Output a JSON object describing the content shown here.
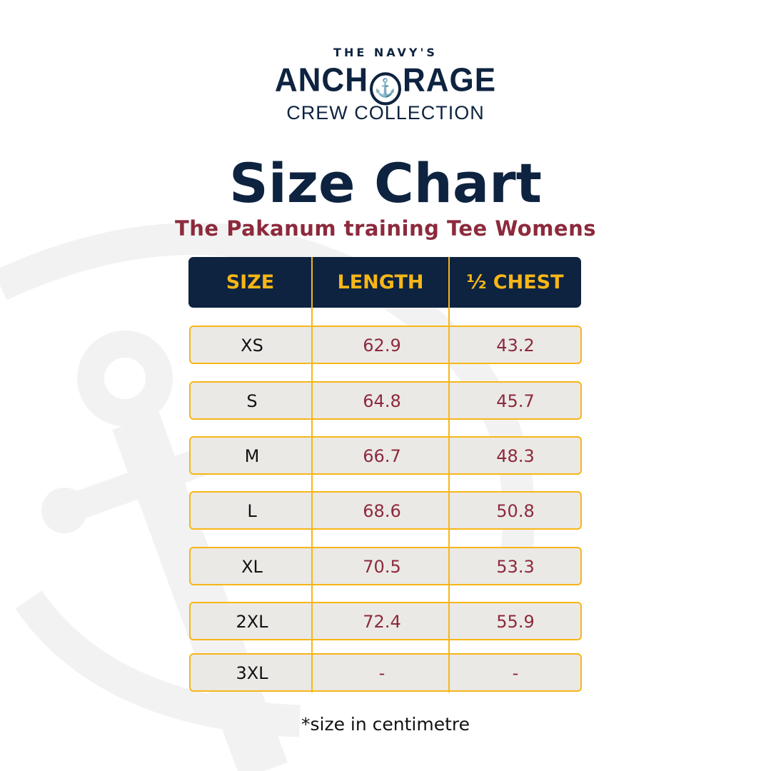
{
  "logo": {
    "top": "THE NAVY'S",
    "main_left": "ANCH",
    "main_right": "RAGE",
    "sub": "CREW COLLECTION",
    "icon": "anchor-icon"
  },
  "title": "Size Chart",
  "subtitle": "The Pakanum training Tee Womens",
  "colors": {
    "navy": "#0e2340",
    "gold": "#f7b617",
    "maroon": "#8c2a3c",
    "row_bg": "#ebe9e6"
  },
  "table": {
    "headers": [
      "SIZE",
      "LENGTH",
      "½ CHEST"
    ],
    "rows": [
      [
        "XS",
        "62.9",
        "43.2"
      ],
      [
        "S",
        "64.8",
        "45.7"
      ],
      [
        "M",
        "66.7",
        "48.3"
      ],
      [
        "L",
        "68.6",
        "50.8"
      ],
      [
        "XL",
        "70.5",
        "53.3"
      ],
      [
        "2XL",
        "72.4",
        "55.9"
      ],
      [
        "3XL",
        "-",
        "-"
      ]
    ]
  },
  "footnote": "*size in centimetre"
}
